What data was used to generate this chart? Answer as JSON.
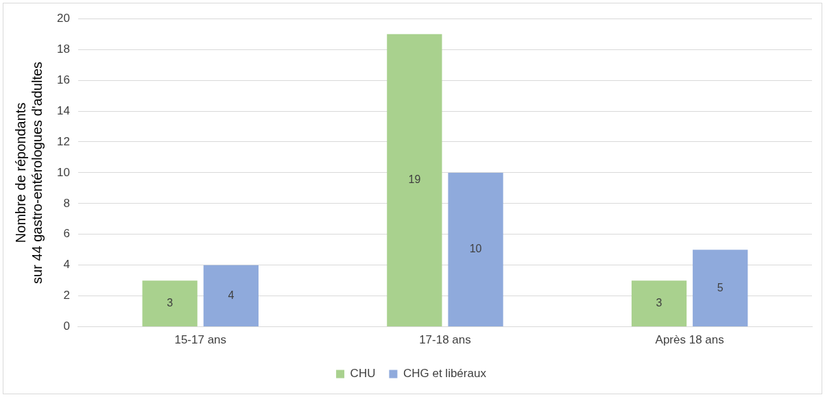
{
  "chart_data": {
    "type": "bar",
    "ylabel": "Nombre de répondants\nsur 44 gastro-entérologues d'adultes",
    "categories": [
      "15-17 ans",
      "17-18 ans",
      "Après 18 ans"
    ],
    "series": [
      {
        "name": "CHU",
        "color": "#a9d18e",
        "values": [
          3,
          19,
          3
        ]
      },
      {
        "name": "CHG et libéraux",
        "color": "#8faadc",
        "values": [
          4,
          10,
          5
        ]
      }
    ],
    "ylim": [
      0,
      20
    ],
    "yticks": [
      0,
      2,
      4,
      6,
      8,
      10,
      12,
      14,
      16,
      18,
      20
    ],
    "grid": "y",
    "legend": "bottom",
    "data_labels": true
  }
}
